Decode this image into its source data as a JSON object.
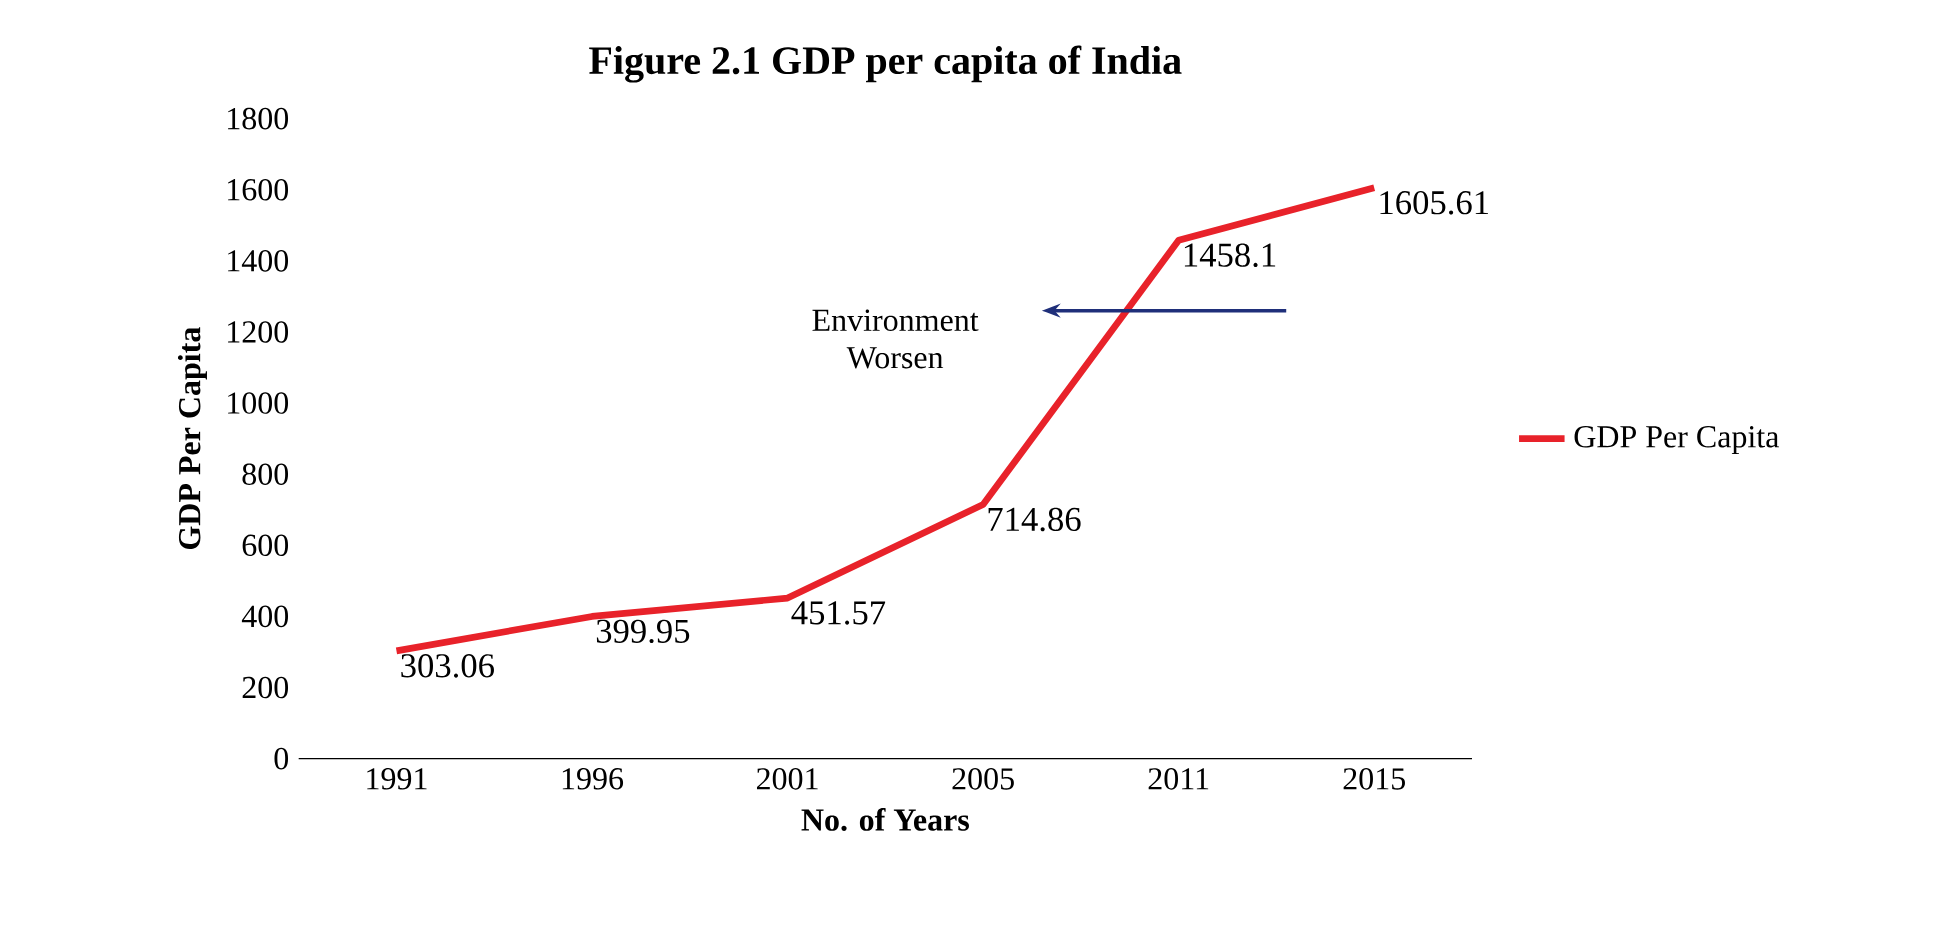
{
  "chart_data": {
    "type": "line",
    "title": "Figure 2.1 GDP per capita of India",
    "xlabel": "No. of Years",
    "ylabel": "GDP Per Capita",
    "categories": [
      "1991",
      "1996",
      "2001",
      "2005",
      "2011",
      "2015"
    ],
    "series": [
      {
        "name": "GDP Per Capita",
        "color": "#e8222a",
        "values": [
          303.06,
          399.95,
          451.57,
          714.86,
          1458.1,
          1605.61
        ]
      }
    ],
    "ylim": [
      0,
      1800
    ],
    "yticks": [
      0,
      200,
      400,
      600,
      800,
      1000,
      1200,
      1400,
      1600,
      1800
    ],
    "data_labels": true,
    "legend": "right",
    "grid": false,
    "marker": "none",
    "line_style": "solid",
    "annotations": [
      "Environment Worsen"
    ]
  }
}
